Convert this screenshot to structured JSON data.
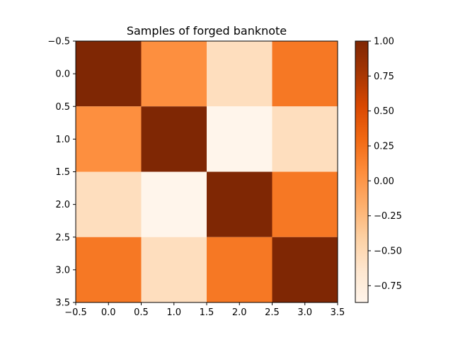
{
  "chart_data": {
    "type": "heatmap",
    "title": "Samples of forged banknote",
    "xlabel": "",
    "ylabel": "",
    "xlim": [
      -0.5,
      3.5
    ],
    "ylim": [
      3.5,
      -0.5
    ],
    "x_ticks": [
      "-0.5",
      "0.0",
      "0.5",
      "1.0",
      "1.5",
      "2.0",
      "2.5",
      "3.0",
      "3.5"
    ],
    "y_ticks": [
      "-0.5",
      "0.0",
      "0.5",
      "1.0",
      "1.5",
      "2.0",
      "2.5",
      "3.0",
      "3.5"
    ],
    "values": [
      [
        1.0,
        0.05,
        -0.55,
        0.2
      ],
      [
        0.05,
        1.0,
        -0.87,
        -0.55
      ],
      [
        -0.55,
        -0.87,
        1.0,
        0.2
      ],
      [
        0.2,
        -0.55,
        0.2,
        1.0
      ]
    ],
    "colormap": "Oranges",
    "colorbar": {
      "min": -0.87,
      "max": 1.0,
      "ticks": [
        "1.00",
        "0.75",
        "0.50",
        "0.25",
        "0.00",
        "−0.25",
        "−0.50",
        "−0.75"
      ],
      "tick_values": [
        1.0,
        0.75,
        0.5,
        0.25,
        0.0,
        -0.25,
        -0.5,
        -0.75
      ]
    },
    "grid": false
  }
}
